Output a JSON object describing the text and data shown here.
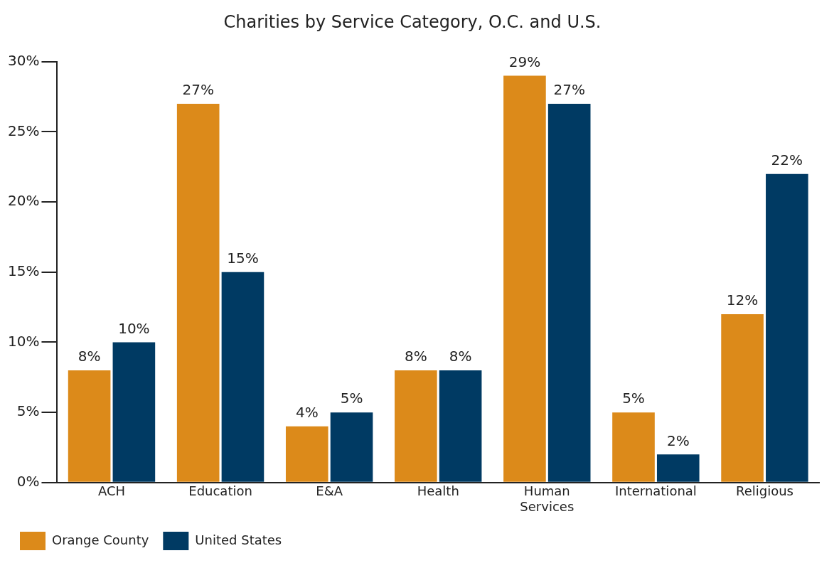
{
  "chart_data": {
    "type": "bar",
    "title": "Charities by Service Category, O.C. and U.S.",
    "categories": [
      "ACH",
      "Education",
      "E&A",
      "Health",
      "Human Services",
      "International",
      "Religious"
    ],
    "series": [
      {
        "name": "Orange County",
        "color": "#dc8a1a",
        "values": [
          8,
          27,
          4,
          8,
          29,
          5,
          12
        ],
        "value_labels": [
          "8%",
          "27%",
          "4%",
          "8%",
          "29%",
          "5%",
          "12%"
        ]
      },
      {
        "name": "United States",
        "color": "#003a63",
        "values": [
          10,
          15,
          5,
          8,
          27,
          2,
          22
        ],
        "value_labels": [
          "10%",
          "15%",
          "5%",
          "8%",
          "27%",
          "2%",
          "22%"
        ]
      }
    ],
    "ylim": [
      0,
      30
    ],
    "yticks": [
      {
        "value": 0,
        "label": "0%"
      },
      {
        "value": 5,
        "label": "5%"
      },
      {
        "value": 10,
        "label": "10%"
      },
      {
        "value": 15,
        "label": "15%"
      },
      {
        "value": 20,
        "label": "20%"
      },
      {
        "value": 25,
        "label": "25%"
      },
      {
        "value": 30,
        "label": "30%"
      }
    ],
    "grid": false,
    "legend": "bottom left"
  }
}
